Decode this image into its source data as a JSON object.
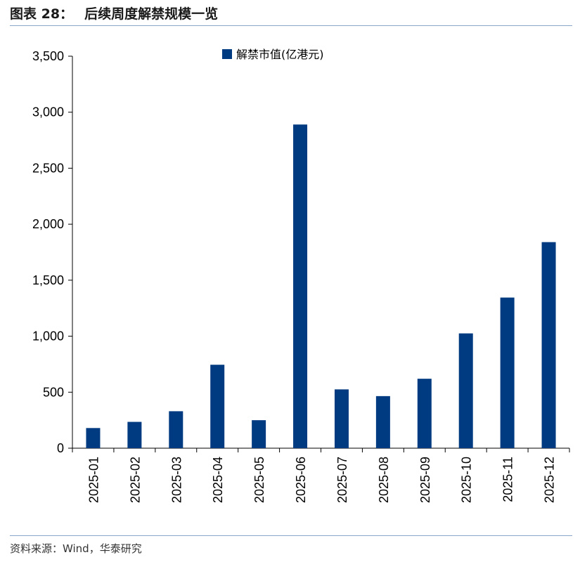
{
  "header": {
    "figure_label": "图表 28：",
    "title": "后续周度解禁规模一览"
  },
  "footer": {
    "source": "资料来源：Wind，华泰研究"
  },
  "chart_data": {
    "type": "bar",
    "title": "后续周度解禁规模一览",
    "xlabel": "",
    "ylabel": "",
    "ylim": [
      0,
      3500
    ],
    "yticks": [
      0,
      500,
      1000,
      1500,
      2000,
      2500,
      3000,
      3500
    ],
    "ytick_labels": [
      "0",
      "500",
      "1,000",
      "1,500",
      "2,000",
      "2,500",
      "3,000",
      "3,500"
    ],
    "categories": [
      "2025-01",
      "2025-02",
      "2025-03",
      "2025-04",
      "2025-05",
      "2025-06",
      "2025-07",
      "2025-08",
      "2025-09",
      "2025-10",
      "2025-11",
      "2025-12"
    ],
    "series": [
      {
        "name": "解禁市值(亿港元)",
        "color": "#003a80",
        "values": [
          180,
          235,
          330,
          745,
          250,
          2890,
          525,
          465,
          620,
          1025,
          1345,
          1840
        ]
      }
    ],
    "legend_position": "top-center",
    "grid": false
  }
}
